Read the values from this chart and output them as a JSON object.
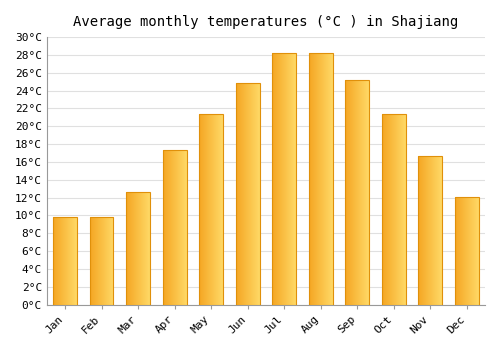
{
  "title": "Average monthly temperatures (°C ) in Shajiang",
  "months": [
    "Jan",
    "Feb",
    "Mar",
    "Apr",
    "May",
    "Jun",
    "Jul",
    "Aug",
    "Sep",
    "Oct",
    "Nov",
    "Dec"
  ],
  "values": [
    9.8,
    9.8,
    12.6,
    17.3,
    21.4,
    24.8,
    28.2,
    28.2,
    25.2,
    21.4,
    16.7,
    12.1
  ],
  "bar_color_left": "#F5A623",
  "bar_color_right": "#FFD966",
  "bar_edge_color": "#E0900A",
  "background_color": "#FFFFFF",
  "grid_color": "#E0E0E0",
  "ylim": [
    0,
    30
  ],
  "ytick_step": 2,
  "title_fontsize": 10,
  "tick_fontsize": 8,
  "bar_width": 0.65
}
